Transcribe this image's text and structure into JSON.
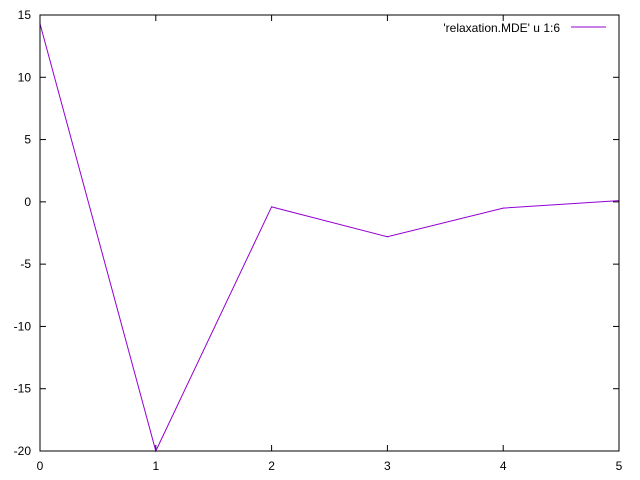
{
  "chart_data": {
    "type": "line",
    "title": "",
    "xlabel": "",
    "ylabel": "",
    "xlim": [
      0,
      5
    ],
    "ylim": [
      -20,
      15
    ],
    "xticks": [
      0,
      1,
      2,
      3,
      4,
      5
    ],
    "yticks": [
      -20,
      -15,
      -10,
      -5,
      0,
      5,
      10,
      15
    ],
    "xtick_labels": [
      "0",
      "1",
      "2",
      "3",
      "4",
      "5"
    ],
    "ytick_labels": [
      "-20",
      "-15",
      "-10",
      "-5",
      "0",
      "5",
      "10",
      "15"
    ],
    "grid": false,
    "legend_position": "top-right",
    "series": [
      {
        "name": "'relaxation.MDE' u 1:6",
        "color": "#9400d3",
        "x": [
          0,
          1,
          2,
          3,
          4,
          5
        ],
        "y": [
          14.3,
          -20.0,
          -0.4,
          -2.8,
          -0.5,
          0.1
        ]
      }
    ]
  }
}
